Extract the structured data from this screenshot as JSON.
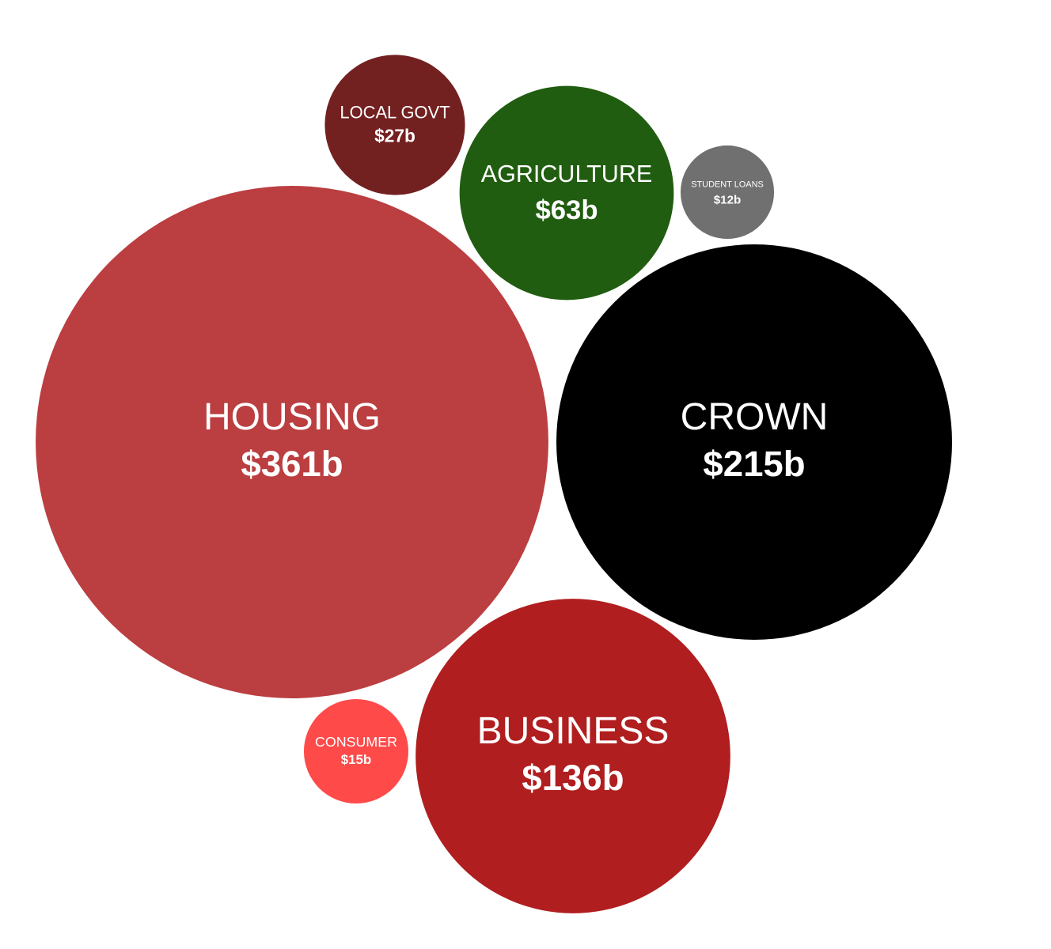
{
  "chart_data": {
    "type": "bubble",
    "categories": [
      "HOUSING",
      "CROWN",
      "BUSINESS",
      "AGRICULTURE",
      "LOCAL GOVT",
      "CONSUMER",
      "STUDENT LOANS"
    ],
    "values": [
      361,
      215,
      136,
      63,
      27,
      15,
      12
    ],
    "value_labels": [
      "$361b",
      "$215b",
      "$136b",
      "$63b",
      "$27b",
      "$15b",
      "$12b"
    ],
    "colors": [
      "#bb3e40",
      "#000000",
      "#b01e1f",
      "#215d10",
      "#732020",
      "#ff4a4a",
      "#707070"
    ]
  }
}
